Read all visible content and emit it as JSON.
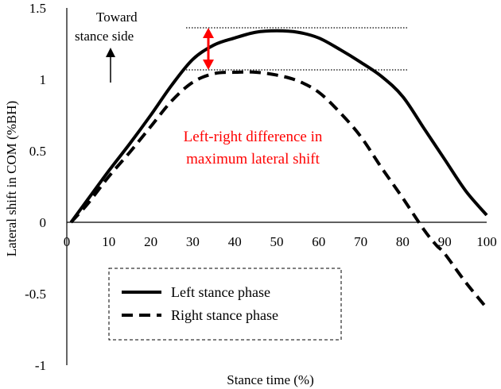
{
  "chart_data": {
    "type": "line",
    "xlabel": "Stance time (%)",
    "ylabel": "Lateral shift in COM (%BH)",
    "xlim": [
      0,
      100
    ],
    "ylim": [
      -1,
      1.5
    ],
    "x_ticks": [
      "0",
      "10",
      "20",
      "30",
      "40",
      "50",
      "60",
      "70",
      "80",
      "90",
      "100"
    ],
    "y_ticks": [
      "1.5",
      "1",
      "0.5",
      "0",
      "-0.5",
      "-1"
    ],
    "grid": false,
    "legend_position": "bottom-center",
    "series": [
      {
        "name": "Left stance phase",
        "style": "solid",
        "color": "#000000",
        "x": [
          1,
          5,
          10,
          15,
          20,
          25,
          30,
          35,
          40,
          45,
          50,
          55,
          60,
          65,
          70,
          75,
          80,
          85,
          90,
          95,
          100
        ],
        "y": [
          0.0,
          0.16,
          0.36,
          0.55,
          0.75,
          0.96,
          1.14,
          1.24,
          1.29,
          1.33,
          1.34,
          1.33,
          1.29,
          1.21,
          1.12,
          1.02,
          0.88,
          0.66,
          0.44,
          0.22,
          0.05
        ]
      },
      {
        "name": "Right stance phase",
        "style": "dashed",
        "color": "#000000",
        "x": [
          1,
          5,
          10,
          15,
          20,
          25,
          30,
          35,
          40,
          45,
          50,
          55,
          60,
          65,
          70,
          75,
          80,
          85,
          88,
          90,
          95,
          100
        ],
        "y": [
          0.0,
          0.13,
          0.32,
          0.49,
          0.67,
          0.85,
          0.98,
          1.04,
          1.05,
          1.05,
          1.03,
          0.99,
          0.91,
          0.77,
          0.6,
          0.38,
          0.17,
          -0.05,
          -0.16,
          -0.22,
          -0.42,
          -0.6
        ]
      }
    ],
    "annotations": {
      "direction_line1": "Toward",
      "direction_line2": "stance side",
      "difference_line1": "Left-right difference in",
      "difference_line2": "maximum lateral shift",
      "difference_color": "#ff0000"
    }
  }
}
